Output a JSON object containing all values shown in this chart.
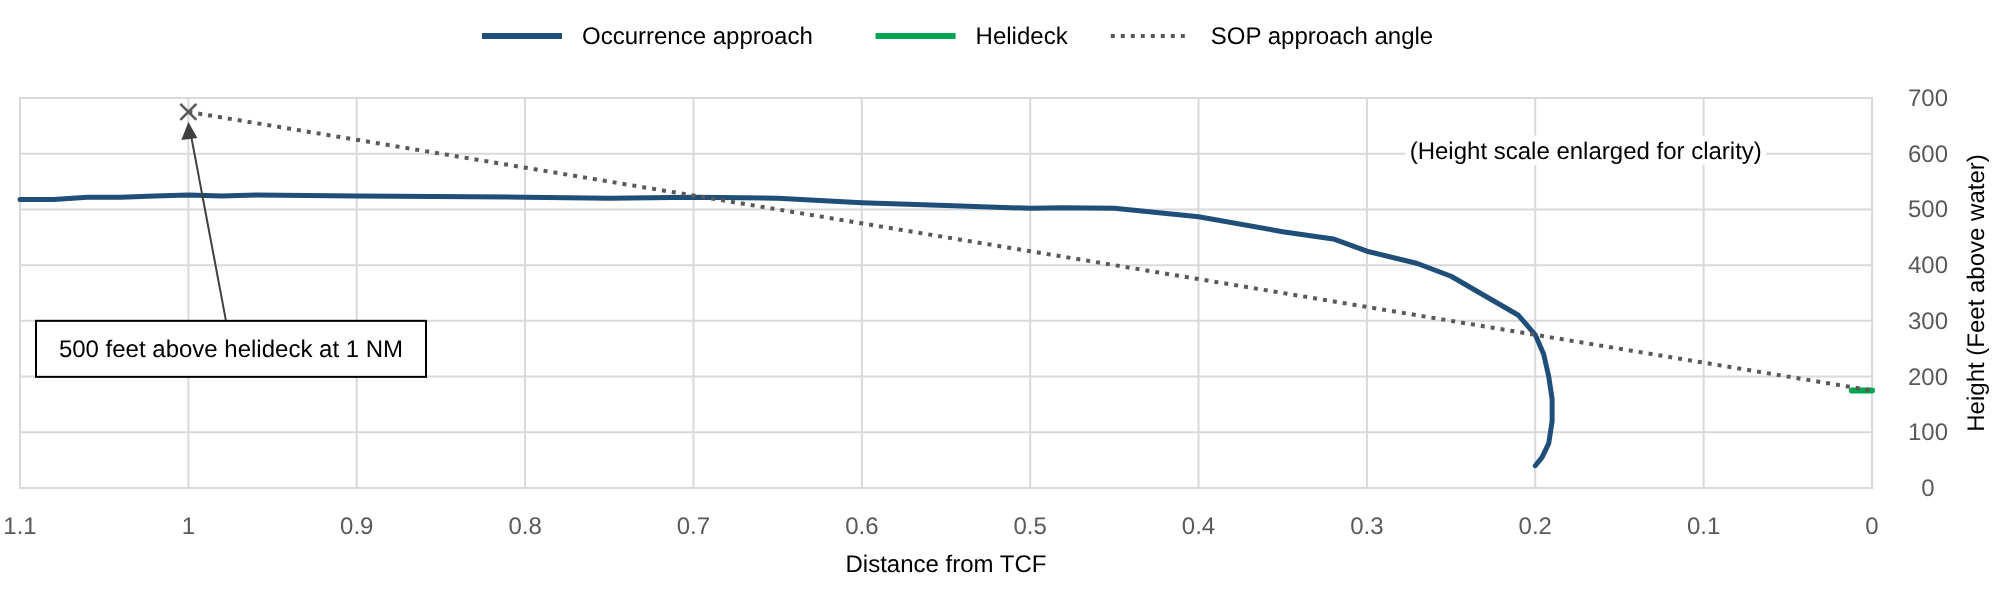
{
  "chart_data": {
    "type": "line",
    "xlabel": "Distance from TCF",
    "ylabel": "Height (Feet above water)",
    "xlim": [
      1.1,
      0
    ],
    "xticks": [
      1.1,
      1,
      0.9,
      0.8,
      0.7,
      0.6,
      0.5,
      0.4,
      0.3,
      0.2,
      0.1,
      0
    ],
    "ylim": [
      0,
      700
    ],
    "yticks": [
      0,
      100,
      200,
      300,
      400,
      500,
      600,
      700
    ],
    "grid": true,
    "legend": "top",
    "series": [
      {
        "name": "Occurrence approach",
        "color": "#1f4e79",
        "line_style": "solid",
        "x": [
          1.1,
          1.08,
          1.06,
          1.04,
          1.02,
          1.0,
          0.98,
          0.96,
          0.9,
          0.8,
          0.75,
          0.7,
          0.65,
          0.6,
          0.55,
          0.5,
          0.48,
          0.45,
          0.4,
          0.35,
          0.32,
          0.3,
          0.27,
          0.25,
          0.23,
          0.21,
          0.2,
          0.195,
          0.192,
          0.19,
          0.19,
          0.192,
          0.196,
          0.2
        ],
        "values": [
          518,
          518,
          522,
          522,
          524,
          526,
          524,
          526,
          524,
          522,
          520,
          522,
          520,
          512,
          507,
          502,
          503,
          502,
          487,
          460,
          447,
          425,
          403,
          380,
          345,
          310,
          275,
          240,
          200,
          160,
          120,
          80,
          55,
          40
        ]
      },
      {
        "name": "Helideck",
        "color": "#00a550",
        "line_style": "solid",
        "x": [
          0.012,
          0
        ],
        "values": [
          175,
          175
        ]
      },
      {
        "name": "SOP approach angle",
        "color": "#595959",
        "line_style": "dotted",
        "x": [
          1,
          0
        ],
        "values": [
          675,
          175
        ]
      }
    ],
    "annotations": [
      "500 feet above helideck at 1 NM",
      "(Height scale enlarged for clarity)"
    ]
  }
}
